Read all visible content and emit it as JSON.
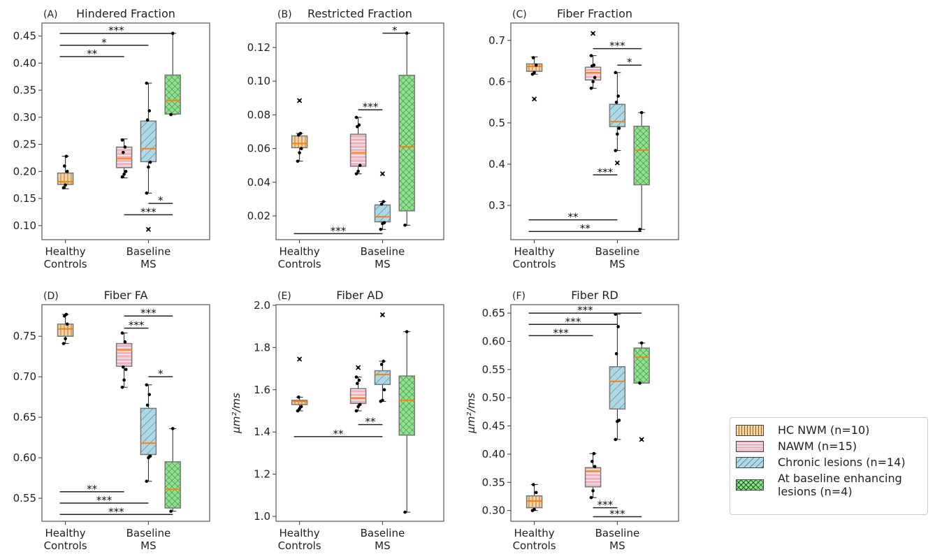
{
  "groups": [
    {
      "key": "hc",
      "name": "HC NWM (n=10)",
      "color": "#f6d29c",
      "line": "#8a6a3a"
    },
    {
      "key": "nawm",
      "name": "NAWM (n=15)",
      "color": "#f5b3c0",
      "line": "#ffffff"
    },
    {
      "key": "chronic",
      "name": "Chronic lesions (n=14)",
      "color": "#add8e6",
      "line": "#4a6a78"
    },
    {
      "key": "enh",
      "name": "At baseline enhancing lesions (n=4)",
      "color": "#90e090",
      "line": "#1f5f1f"
    }
  ],
  "median_color": "#ff7f0e",
  "x_categories": [
    [
      "Healthy",
      "Controls"
    ],
    [
      "Baseline",
      "MS"
    ]
  ],
  "chart_data": [
    {
      "type": "box",
      "label": "(A)",
      "title": "Hindered Fraction",
      "ylabel": "",
      "ylim": [
        0.074,
        0.474
      ],
      "yticks": [
        "0.10",
        "0.15",
        "0.20",
        "0.25",
        "0.30",
        "0.35",
        "0.40",
        "0.45"
      ],
      "boxes": [
        {
          "whislo": 0.168,
          "q1": 0.176,
          "med": 0.181,
          "q3": 0.197,
          "whishi": 0.228,
          "outliers": [],
          "points": [
            0.17,
            0.175,
            0.2,
            0.21,
            0.228
          ]
        },
        {
          "whislo": 0.188,
          "q1": 0.207,
          "med": 0.224,
          "q3": 0.245,
          "whishi": 0.26,
          "outliers": [],
          "points": [
            0.19,
            0.195,
            0.2,
            0.235,
            0.245,
            0.258
          ]
        },
        {
          "whislo": 0.16,
          "q1": 0.218,
          "med": 0.242,
          "q3": 0.293,
          "whishi": 0.363,
          "outliers": [
            0.093
          ],
          "points": [
            0.16,
            0.208,
            0.217,
            0.295,
            0.312,
            0.363
          ]
        },
        {
          "whislo": 0.305,
          "q1": 0.306,
          "med": 0.331,
          "q3": 0.378,
          "whishi": 0.455,
          "outliers": [],
          "points": [
            0.305,
            0.455
          ]
        }
      ],
      "brackets": [
        {
          "from": 0,
          "to": 3,
          "y": 0.455,
          "label": "***"
        },
        {
          "from": 0,
          "to": 2,
          "y": 0.433,
          "label": "*"
        },
        {
          "from": 0,
          "to": 1,
          "y": 0.412,
          "label": "**"
        },
        {
          "from": 2,
          "to": 3,
          "y": 0.141,
          "label": "*"
        },
        {
          "from": 1,
          "to": 3,
          "y": 0.12,
          "label": "***"
        }
      ]
    },
    {
      "type": "box",
      "label": "(B)",
      "title": "Restricted Fraction",
      "ylabel": "",
      "ylim": [
        0.0059,
        0.1345
      ],
      "yticks": [
        "0.02",
        "0.04",
        "0.06",
        "0.08",
        "0.10",
        "0.12"
      ],
      "boxes": [
        {
          "whislo": 0.0525,
          "q1": 0.0605,
          "med": 0.063,
          "q3": 0.0675,
          "whishi": 0.069,
          "outliers": [
            0.0885
          ],
          "points": [
            0.0525,
            0.0575,
            0.06,
            0.068,
            0.069
          ]
        },
        {
          "whislo": 0.045,
          "q1": 0.0495,
          "med": 0.0575,
          "q3": 0.0685,
          "whishi": 0.0785,
          "outliers": [],
          "points": [
            0.045,
            0.0465,
            0.05,
            0.073,
            0.074,
            0.0785
          ]
        },
        {
          "whislo": 0.012,
          "q1": 0.0165,
          "med": 0.0195,
          "q3": 0.0265,
          "whishi": 0.0285,
          "outliers": [
            0.045
          ],
          "points": [
            0.012,
            0.0155,
            0.016,
            0.027,
            0.0285
          ]
        },
        {
          "whislo": 0.0145,
          "q1": 0.023,
          "med": 0.061,
          "q3": 0.1035,
          "whishi": 0.1285,
          "outliers": [],
          "points": [
            0.0145,
            0.1285
          ]
        }
      ],
      "brackets": [
        {
          "from": 2,
          "to": 3,
          "y": 0.1285,
          "label": "*"
        },
        {
          "from": 1,
          "to": 2,
          "y": 0.083,
          "label": "***"
        },
        {
          "from": 0,
          "to": 2,
          "y": 0.0095,
          "label": "***"
        }
      ]
    },
    {
      "type": "box",
      "label": "(C)",
      "title": "Fiber Fraction",
      "ylabel": "",
      "ylim": [
        0.217,
        0.742
      ],
      "yticks": [
        "0.3",
        "0.4",
        "0.5",
        "0.6",
        "0.7"
      ],
      "boxes": [
        {
          "whislo": 0.618,
          "q1": 0.625,
          "med": 0.637,
          "q3": 0.643,
          "whishi": 0.66,
          "outliers": [
            0.558
          ],
          "points": [
            0.618,
            0.622,
            0.64,
            0.658
          ]
        },
        {
          "whislo": 0.584,
          "q1": 0.604,
          "med": 0.622,
          "q3": 0.635,
          "whishi": 0.663,
          "outliers": [
            0.717
          ],
          "points": [
            0.584,
            0.6,
            0.61,
            0.638,
            0.64,
            0.663
          ]
        },
        {
          "whislo": 0.433,
          "q1": 0.491,
          "med": 0.503,
          "q3": 0.545,
          "whishi": 0.622,
          "outliers": [
            0.403
          ],
          "points": [
            0.433,
            0.473,
            0.487,
            0.55,
            0.565,
            0.622
          ]
        },
        {
          "whislo": 0.242,
          "q1": 0.35,
          "med": 0.434,
          "q3": 0.492,
          "whishi": 0.525,
          "outliers": [],
          "points": [
            0.242,
            0.525
          ]
        }
      ],
      "brackets": [
        {
          "from": 1,
          "to": 3,
          "y": 0.68,
          "label": "***"
        },
        {
          "from": 2,
          "to": 3,
          "y": 0.64,
          "label": "*"
        },
        {
          "from": 1,
          "to": 2,
          "y": 0.374,
          "label": "***"
        },
        {
          "from": 0,
          "to": 2,
          "y": 0.265,
          "label": "**"
        },
        {
          "from": 0,
          "to": 3,
          "y": 0.237,
          "label": "**"
        }
      ]
    },
    {
      "type": "box",
      "label": "(D)",
      "title": "Fiber FA",
      "ylabel": "",
      "ylim": [
        0.5216,
        0.789
      ],
      "yticks": [
        "0.55",
        "0.60",
        "0.65",
        "0.70",
        "0.75"
      ],
      "boxes": [
        {
          "whislo": 0.741,
          "q1": 0.75,
          "med": 0.759,
          "q3": 0.765,
          "whishi": 0.777,
          "outliers": [],
          "points": [
            0.741,
            0.747,
            0.765,
            0.775,
            0.777
          ]
        },
        {
          "whislo": 0.687,
          "q1": 0.713,
          "med": 0.733,
          "q3": 0.741,
          "whishi": 0.754,
          "outliers": [],
          "points": [
            0.687,
            0.696,
            0.709,
            0.712,
            0.743,
            0.754
          ]
        },
        {
          "whislo": 0.571,
          "q1": 0.604,
          "med": 0.618,
          "q3": 0.661,
          "whishi": 0.69,
          "outliers": [],
          "points": [
            0.571,
            0.6,
            0.602,
            0.665,
            0.678,
            0.69
          ]
        },
        {
          "whislo": 0.534,
          "q1": 0.538,
          "med": 0.561,
          "q3": 0.595,
          "whishi": 0.636,
          "outliers": [],
          "points": [
            0.534,
            0.636
          ]
        }
      ],
      "brackets": [
        {
          "from": 1,
          "to": 3,
          "y": 0.775,
          "label": "***"
        },
        {
          "from": 1,
          "to": 2,
          "y": 0.76,
          "label": "***"
        },
        {
          "from": 2,
          "to": 3,
          "y": 0.7,
          "label": "*"
        },
        {
          "from": 0,
          "to": 1,
          "y": 0.558,
          "label": "**"
        },
        {
          "from": 0,
          "to": 2,
          "y": 0.544,
          "label": "***"
        },
        {
          "from": 0,
          "to": 3,
          "y": 0.53,
          "label": "***"
        }
      ]
    },
    {
      "type": "box",
      "label": "(E)",
      "title": "Fiber AD",
      "ylabel": "μm²/ms",
      "ylim": [
        0.977,
        2.003
      ],
      "yticks": [
        "1.0",
        "1.2",
        "1.4",
        "1.6",
        "1.8",
        "2.0"
      ],
      "boxes": [
        {
          "whislo": 1.5,
          "q1": 1.53,
          "med": 1.545,
          "q3": 1.55,
          "whishi": 1.565,
          "outliers": [
            1.745
          ],
          "points": [
            1.5,
            1.51,
            1.52,
            1.565
          ]
        },
        {
          "whislo": 1.5,
          "q1": 1.535,
          "med": 1.56,
          "q3": 1.605,
          "whishi": 1.66,
          "outliers": [
            1.705
          ],
          "points": [
            1.5,
            1.52,
            1.53,
            1.63,
            1.645,
            1.66
          ]
        },
        {
          "whislo": 1.545,
          "q1": 1.625,
          "med": 1.672,
          "q3": 1.69,
          "whishi": 1.735,
          "outliers": [
            1.955
          ],
          "points": [
            1.545,
            1.55,
            1.6,
            1.72,
            1.735
          ]
        },
        {
          "whislo": 1.02,
          "q1": 1.385,
          "med": 1.55,
          "q3": 1.665,
          "whishi": 1.875,
          "outliers": [],
          "points": [
            1.02,
            1.875
          ]
        }
      ],
      "brackets": [
        {
          "from": 1,
          "to": 2,
          "y": 1.435,
          "label": "**"
        },
        {
          "from": 0,
          "to": 2,
          "y": 1.378,
          "label": "**"
        }
      ]
    },
    {
      "type": "box",
      "label": "(F)",
      "title": "Fiber RD",
      "ylabel": "μm²/ms",
      "ylim": [
        0.281,
        0.665
      ],
      "yticks": [
        "0.30",
        "0.35",
        "0.40",
        "0.45",
        "0.50",
        "0.55",
        "0.60",
        "0.65"
      ],
      "boxes": [
        {
          "whislo": 0.3,
          "q1": 0.305,
          "med": 0.317,
          "q3": 0.326,
          "whishi": 0.346,
          "outliers": [],
          "points": [
            0.3,
            0.302,
            0.332,
            0.346
          ]
        },
        {
          "whislo": 0.323,
          "q1": 0.342,
          "med": 0.37,
          "q3": 0.376,
          "whishi": 0.401,
          "outliers": [],
          "points": [
            0.323,
            0.335,
            0.378,
            0.387,
            0.401
          ]
        },
        {
          "whislo": 0.426,
          "q1": 0.48,
          "med": 0.529,
          "q3": 0.555,
          "whishi": 0.648,
          "outliers": [],
          "points": [
            0.426,
            0.458,
            0.46,
            0.578,
            0.626,
            0.648
          ]
        },
        {
          "whislo": 0.526,
          "q1": 0.526,
          "med": 0.572,
          "q3": 0.588,
          "whishi": 0.597,
          "outliers": [
            0.426
          ],
          "points": [
            0.526,
            0.597
          ]
        }
      ],
      "brackets": [
        {
          "from": 0,
          "to": 3,
          "y": 0.65,
          "label": "***"
        },
        {
          "from": 0,
          "to": 2,
          "y": 0.63,
          "label": "***"
        },
        {
          "from": 0,
          "to": 1,
          "y": 0.61,
          "label": "***"
        },
        {
          "from": 1,
          "to": 2,
          "y": 0.305,
          "label": "***"
        },
        {
          "from": 1,
          "to": 3,
          "y": 0.289,
          "label": "***"
        }
      ]
    }
  ]
}
